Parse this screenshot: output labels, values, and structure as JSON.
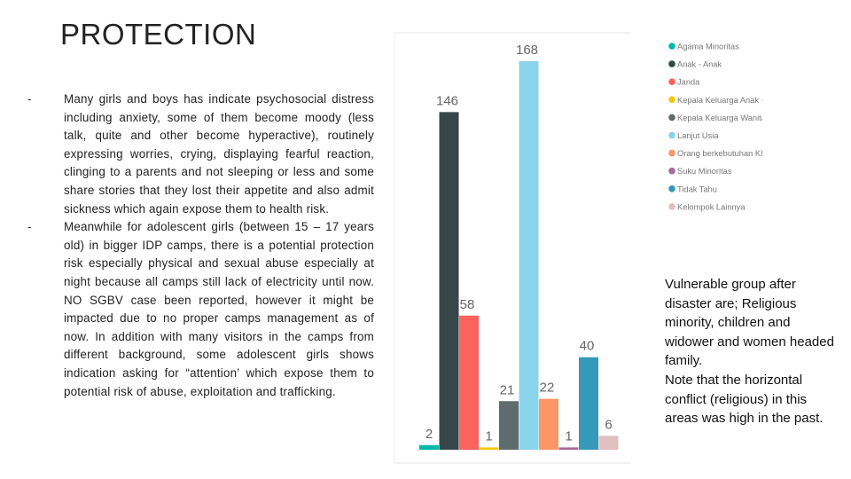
{
  "slide": {
    "title": "PROTECTION",
    "bullets": [
      {
        "marker": "-",
        "text": "Many girls and boys has indicate psychosocial distress including anxiety, some of them become moody (less talk, quite and other become hyperactive), routinely expressing worries, crying, displaying fearful reaction, clinging to a parents and not sleeping or less and some share stories that they lost their appetite and also admit sickness which again expose them to health risk."
      },
      {
        "marker": "-",
        "text": "Meanwhile for adolescent girls (between 15 – 17 years old) in bigger IDP camps, there is a potential protection risk especially physical and sexual abuse especially at night because all camps still lack of electricity until now. NO SGBV case been reported, however it might be impacted due to no proper camps management as of now. In addition with many visitors in the camps from different background, some adolescent girls shows indication asking for “attention’ which expose them to potential risk of abuse, exploitation and trafficking."
      }
    ],
    "note": {
      "para1": "Vulnerable group after disaster are; Religious minority, children and widower and women headed family.",
      "para2": "Note that the horizontal conflict (religious) in this areas was high in the past."
    }
  },
  "chart_data": {
    "type": "bar",
    "title": "",
    "xlabel": "",
    "ylabel": "",
    "ylim": [
      0,
      175
    ],
    "grid": false,
    "legend_position": "right",
    "categories": [
      "Agama Minoritas",
      "Anak - Anak",
      "Janda",
      "Kepala Keluarga Anak - Anak",
      "Kepala Keluarga Wanita",
      "Lanjut Usia",
      "Orang berkebutuhan Khusus",
      "Suku Minoritas",
      "Tidak Tahu",
      "Kelompok Lainnya"
    ],
    "values": [
      2,
      146,
      58,
      1,
      21,
      168,
      22,
      1,
      40,
      6
    ],
    "colors": [
      "#01B8AA",
      "#374649",
      "#FD625E",
      "#F2C80F",
      "#5F6B6D",
      "#8AD4EB",
      "#FE9666",
      "#A66999",
      "#3599B8",
      "#DFBFBF"
    ]
  }
}
